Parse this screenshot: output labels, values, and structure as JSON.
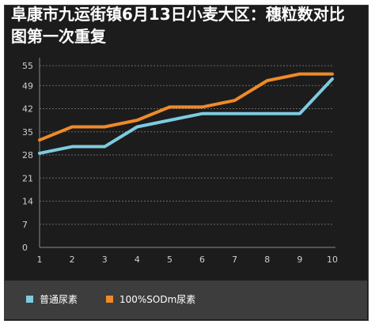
{
  "chart_data": {
    "type": "line",
    "title": "阜康市九运街镇6月13日小麦大区：穗粒数对比图第一次重复",
    "x": [
      1,
      2,
      3,
      4,
      5,
      6,
      7,
      8,
      9,
      10
    ],
    "yticks": [
      0,
      7,
      14,
      21,
      28,
      35,
      42,
      49,
      55
    ],
    "ylim": [
      0,
      56
    ],
    "grid": true,
    "legend_position": "bottom",
    "series": [
      {
        "name": "普通尿素",
        "color": "#7ecbe0",
        "values": [
          28.5,
          30.5,
          30.5,
          36.5,
          38.5,
          40.5,
          40.5,
          40.5,
          40.5,
          51
        ]
      },
      {
        "name": "100%SODm尿素",
        "color": "#ee8a2a",
        "values": [
          32.5,
          36.5,
          36.5,
          38.5,
          42.5,
          42.5,
          44.5,
          50.5,
          52.5,
          52.5
        ]
      }
    ]
  }
}
